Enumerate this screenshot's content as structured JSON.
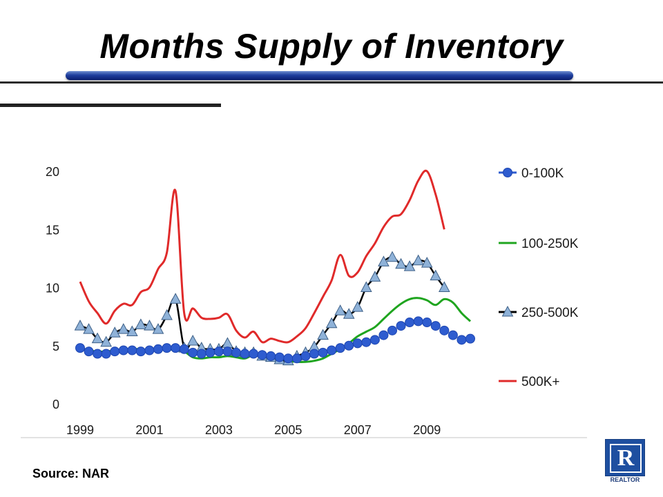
{
  "slide": {
    "title": "Months Supply of Inventory",
    "source": "Source: NAR",
    "logo_label": "REALTOR",
    "logo_letter": "R"
  },
  "chart_data": {
    "type": "line",
    "title": "",
    "xlabel": "",
    "ylabel": "",
    "ylim": [
      0,
      20
    ],
    "yticks": [
      "0",
      "5",
      "10",
      "15",
      "20"
    ],
    "xlim": [
      1999,
      2010.5
    ],
    "xticks": [
      "1999",
      "2001",
      "2003",
      "2005",
      "2007",
      "2009"
    ],
    "grid": false,
    "legend_position": "right",
    "series": [
      {
        "name": "0-100K",
        "color": "#2e5ccf",
        "marker": "circle",
        "x": [
          1999.0,
          1999.25,
          1999.5,
          1999.75,
          2000.0,
          2000.25,
          2000.5,
          2000.75,
          2001.0,
          2001.25,
          2001.5,
          2001.75,
          2002.0,
          2002.25,
          2002.5,
          2002.75,
          2003.0,
          2003.25,
          2003.5,
          2003.75,
          2004.0,
          2004.25,
          2004.5,
          2004.75,
          2005.0,
          2005.25,
          2005.5,
          2005.75,
          2006.0,
          2006.25,
          2006.5,
          2006.75,
          2007.0,
          2007.25,
          2007.5,
          2007.75,
          2008.0,
          2008.25,
          2008.5,
          2008.75,
          2009.0,
          2009.25,
          2009.5,
          2009.75,
          2010.0,
          2010.25
        ],
        "values": [
          4.8,
          4.5,
          4.3,
          4.3,
          4.5,
          4.6,
          4.6,
          4.5,
          4.6,
          4.7,
          4.8,
          4.8,
          4.7,
          4.4,
          4.3,
          4.4,
          4.5,
          4.5,
          4.4,
          4.3,
          4.3,
          4.2,
          4.1,
          4.0,
          3.9,
          3.9,
          4.1,
          4.3,
          4.4,
          4.6,
          4.8,
          5.0,
          5.2,
          5.3,
          5.5,
          5.9,
          6.3,
          6.7,
          7.0,
          7.1,
          7.0,
          6.7,
          6.3,
          5.9,
          5.5,
          5.6
        ]
      },
      {
        "name": "100-250K",
        "color": "#1fa51f",
        "marker": "none",
        "x": [
          1999.0,
          1999.25,
          1999.5,
          1999.75,
          2000.0,
          2000.25,
          2000.5,
          2000.75,
          2001.0,
          2001.25,
          2001.5,
          2001.75,
          2002.0,
          2002.25,
          2002.5,
          2002.75,
          2003.0,
          2003.25,
          2003.5,
          2003.75,
          2004.0,
          2004.25,
          2004.5,
          2004.75,
          2005.0,
          2005.25,
          2005.5,
          2005.75,
          2006.0,
          2006.25,
          2006.5,
          2006.75,
          2007.0,
          2007.25,
          2007.5,
          2007.75,
          2008.0,
          2008.25,
          2008.5,
          2008.75,
          2009.0,
          2009.25,
          2009.5,
          2009.75,
          2010.0,
          2010.25
        ],
        "values": [
          4.8,
          4.6,
          4.5,
          4.5,
          4.6,
          4.7,
          4.7,
          4.7,
          4.6,
          4.6,
          4.7,
          4.6,
          4.5,
          4.0,
          3.9,
          4.0,
          4.0,
          4.1,
          4.0,
          3.9,
          4.2,
          4.1,
          4.0,
          3.9,
          3.7,
          3.6,
          3.6,
          3.7,
          3.9,
          4.3,
          4.7,
          5.2,
          5.8,
          6.2,
          6.6,
          7.3,
          8.0,
          8.6,
          9.0,
          9.1,
          8.9,
          8.5,
          9.0,
          8.7,
          7.8,
          7.1
        ]
      },
      {
        "name": "250-500K",
        "color": "#000000",
        "marker": "triangle",
        "x": [
          1999.0,
          1999.25,
          1999.5,
          1999.75,
          2000.0,
          2000.25,
          2000.5,
          2000.75,
          2001.0,
          2001.25,
          2001.5,
          2001.75,
          2002.0,
          2002.25,
          2002.5,
          2002.75,
          2003.0,
          2003.25,
          2003.5,
          2003.75,
          2004.0,
          2004.25,
          2004.5,
          2004.75,
          2005.0,
          2005.25,
          2005.5,
          2005.75,
          2006.0,
          2006.25,
          2006.5,
          2006.75,
          2007.0,
          2007.25,
          2007.5,
          2007.75,
          2008.0,
          2008.25,
          2008.5,
          2008.75,
          2009.0,
          2009.25,
          2009.5,
          2009.75,
          2010.0,
          2010.25
        ],
        "values": [
          6.7,
          6.4,
          5.6,
          5.3,
          6.1,
          6.4,
          6.2,
          6.8,
          6.7,
          6.4,
          7.6,
          9.0,
          4.8,
          5.4,
          4.8,
          4.7,
          4.7,
          5.2,
          4.5,
          4.4,
          4.4,
          4.1,
          4.0,
          3.8,
          3.7,
          4.1,
          4.4,
          4.9,
          5.9,
          6.9,
          8.0,
          7.7,
          8.3,
          10.0,
          10.9,
          12.2,
          12.6,
          12.0,
          11.8,
          12.3,
          12.1,
          11.0,
          10.0,
          null,
          null,
          null
        ]
      },
      {
        "name": "500K+",
        "color": "#e02a2a",
        "marker": "none",
        "x": [
          1999.0,
          1999.25,
          1999.5,
          1999.75,
          2000.0,
          2000.25,
          2000.5,
          2000.75,
          2001.0,
          2001.25,
          2001.5,
          2001.75,
          2002.0,
          2002.25,
          2002.5,
          2002.75,
          2003.0,
          2003.25,
          2003.5,
          2003.75,
          2004.0,
          2004.25,
          2004.5,
          2004.75,
          2005.0,
          2005.25,
          2005.5,
          2005.75,
          2006.0,
          2006.25,
          2006.5,
          2006.75,
          2007.0,
          2007.25,
          2007.5,
          2007.75,
          2008.0,
          2008.25,
          2008.5,
          2008.75,
          2009.0,
          2009.25,
          2009.5,
          2009.75,
          2010.0,
          2010.25
        ],
        "values": [
          10.5,
          8.8,
          7.8,
          6.9,
          8.0,
          8.6,
          8.5,
          9.6,
          10.0,
          11.6,
          13.0,
          18.3,
          7.8,
          8.2,
          7.4,
          7.3,
          7.4,
          7.7,
          6.3,
          5.7,
          6.2,
          5.3,
          5.6,
          5.4,
          5.3,
          5.8,
          6.5,
          7.8,
          9.2,
          10.6,
          12.8,
          11.0,
          11.3,
          12.7,
          13.8,
          15.2,
          16.1,
          16.3,
          17.5,
          19.2,
          20.0,
          18.0,
          15.0,
          null,
          null,
          null
        ]
      }
    ]
  }
}
